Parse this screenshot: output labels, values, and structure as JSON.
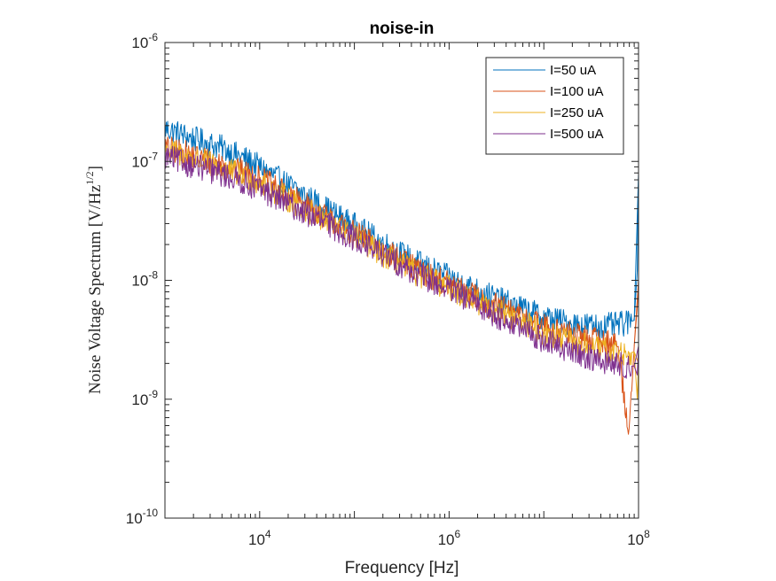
{
  "chart_data": {
    "type": "line",
    "title": "noise-in",
    "xlabel": "Frequency [Hz]",
    "ylabel_main": "Noise Voltage Spectrum [V/Hz",
    "ylabel_sup": "1/2",
    "ylabel_end": "]",
    "x_scale": "log",
    "y_scale": "log",
    "xlim": [
      1000,
      100000000
    ],
    "ylim": [
      1e-10,
      1e-06
    ],
    "x_ticks": [
      {
        "value": 10000,
        "base": "10",
        "exp": "4"
      },
      {
        "value": 1000000,
        "base": "10",
        "exp": "6"
      },
      {
        "value": 100000000,
        "base": "10",
        "exp": "8"
      }
    ],
    "y_ticks": [
      {
        "value": 1e-10,
        "base": "10",
        "exp": "-10"
      },
      {
        "value": 1e-09,
        "base": "10",
        "exp": "-9"
      },
      {
        "value": 1e-08,
        "base": "10",
        "exp": "-8"
      },
      {
        "value": 1e-07,
        "base": "10",
        "exp": "-7"
      },
      {
        "value": 1e-06,
        "base": "10",
        "exp": "-6"
      }
    ],
    "grid": false,
    "legend_position": "top-right",
    "series": [
      {
        "name": "I=50 uA",
        "color": "#0072BD",
        "points": [
          [
            1000,
            1.9e-07
          ],
          [
            2000,
            1.55e-07
          ],
          [
            4000,
            1.3e-07
          ],
          [
            7000,
            1.05e-07
          ],
          [
            10000,
            9e-08
          ],
          [
            20000,
            6.3e-08
          ],
          [
            40000,
            4.5e-08
          ],
          [
            70000,
            3.4e-08
          ],
          [
            100000,
            2.9e-08
          ],
          [
            200000,
            2.05e-08
          ],
          [
            400000,
            1.5e-08
          ],
          [
            700000,
            1.2e-08
          ],
          [
            1000000,
            1.05e-08
          ],
          [
            2000000,
            8.2e-09
          ],
          [
            4000000,
            6.5e-09
          ],
          [
            7000000,
            5.5e-09
          ],
          [
            10000000,
            4.9e-09
          ],
          [
            20000000,
            4.3e-09
          ],
          [
            40000000,
            4.1e-09
          ],
          [
            70000000,
            4.3e-09
          ],
          [
            90000000,
            4.6e-09
          ],
          [
            97000000,
            1.2e-08
          ],
          [
            100000000,
            8e-08
          ]
        ]
      },
      {
        "name": "I=100 uA",
        "color": "#D95319",
        "points": [
          [
            1000,
            1.3e-07
          ],
          [
            2000,
            1.12e-07
          ],
          [
            4000,
            9.5e-08
          ],
          [
            7000,
            8e-08
          ],
          [
            10000,
            7.2e-08
          ],
          [
            20000,
            5.2e-08
          ],
          [
            40000,
            3.8e-08
          ],
          [
            70000,
            2.9e-08
          ],
          [
            100000,
            2.5e-08
          ],
          [
            200000,
            1.8e-08
          ],
          [
            400000,
            1.3e-08
          ],
          [
            700000,
            1.05e-08
          ],
          [
            1000000,
            9.3e-09
          ],
          [
            2000000,
            7.2e-09
          ],
          [
            4000000,
            5.6e-09
          ],
          [
            7000000,
            4.7e-09
          ],
          [
            10000000,
            4.1e-09
          ],
          [
            20000000,
            3.5e-09
          ],
          [
            40000000,
            3.1e-09
          ],
          [
            60000000,
            2.9e-09
          ],
          [
            80000000,
            5e-10
          ],
          [
            90000000,
            2.8e-09
          ],
          [
            97000000,
            6e-09
          ],
          [
            100000000,
            1e-08
          ]
        ]
      },
      {
        "name": "I=250 uA",
        "color": "#EDB120",
        "points": [
          [
            1000,
            1.25e-07
          ],
          [
            2000,
            1.05e-07
          ],
          [
            4000,
            8.8e-08
          ],
          [
            7000,
            7.4e-08
          ],
          [
            10000,
            6.6e-08
          ],
          [
            20000,
            4.8e-08
          ],
          [
            40000,
            3.5e-08
          ],
          [
            70000,
            2.7e-08
          ],
          [
            100000,
            2.3e-08
          ],
          [
            200000,
            1.65e-08
          ],
          [
            400000,
            1.2e-08
          ],
          [
            700000,
            9.8e-09
          ],
          [
            1000000,
            8.6e-09
          ],
          [
            2000000,
            6.6e-09
          ],
          [
            4000000,
            5.1e-09
          ],
          [
            7000000,
            4.2e-09
          ],
          [
            10000000,
            3.6e-09
          ],
          [
            20000000,
            3e-09
          ],
          [
            40000000,
            2.6e-09
          ],
          [
            70000000,
            2.4e-09
          ],
          [
            90000000,
            2.5e-09
          ],
          [
            97000000,
            1e-09
          ],
          [
            100000000,
            2e-09
          ]
        ]
      },
      {
        "name": "I=500 uA",
        "color": "#7E2F8E",
        "points": [
          [
            1000,
            1.1e-07
          ],
          [
            2000,
            9.2e-08
          ],
          [
            4000,
            7.8e-08
          ],
          [
            7000,
            6.6e-08
          ],
          [
            10000,
            5.9e-08
          ],
          [
            20000,
            4.4e-08
          ],
          [
            40000,
            3.3e-08
          ],
          [
            70000,
            2.6e-08
          ],
          [
            100000,
            2.25e-08
          ],
          [
            200000,
            1.65e-08
          ],
          [
            400000,
            1.2e-08
          ],
          [
            700000,
            9.6e-09
          ],
          [
            1000000,
            8.3e-09
          ],
          [
            2000000,
            6.2e-09
          ],
          [
            4000000,
            4.6e-09
          ],
          [
            7000000,
            3.6e-09
          ],
          [
            10000000,
            3.1e-09
          ],
          [
            20000000,
            2.5e-09
          ],
          [
            40000000,
            2.1e-09
          ],
          [
            70000000,
            1.9e-09
          ],
          [
            90000000,
            1.9e-09
          ],
          [
            97000000,
            1.6e-09
          ],
          [
            100000000,
            2.8e-09
          ]
        ]
      }
    ]
  }
}
